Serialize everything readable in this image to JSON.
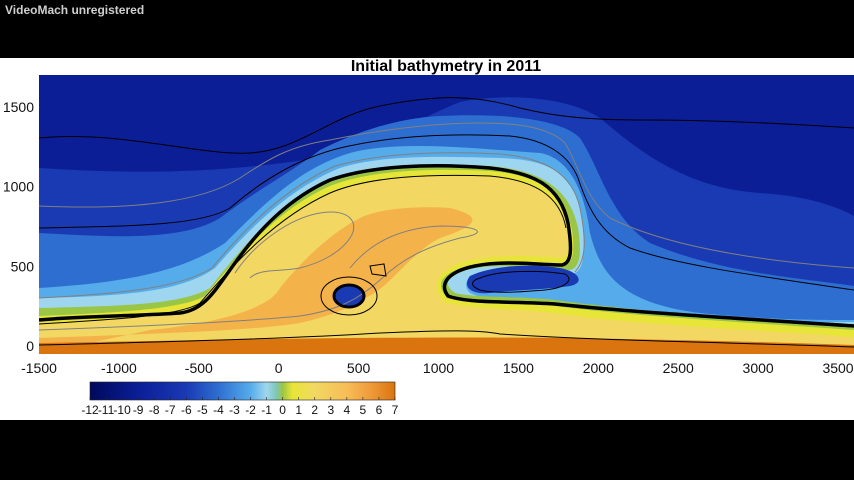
{
  "player": {
    "watermark": "VideoMach unregistered"
  },
  "chart_data": {
    "type": "heatmap",
    "title": "Initial bathymetry in 2011",
    "xlabel": "",
    "ylabel": "",
    "xlim": [
      -1500,
      3600
    ],
    "ylim": [
      -50,
      1700
    ],
    "x_ticks": [
      -1500,
      -1000,
      -500,
      0,
      500,
      1000,
      1500,
      2000,
      2500,
      3000,
      3500
    ],
    "x_tick_labels": [
      "-1500",
      "-1000",
      "-500",
      "0",
      "500",
      "1000",
      "1500",
      "2000",
      "2500",
      "3000",
      "3500"
    ],
    "y_ticks": [
      0,
      500,
      1000,
      1500
    ],
    "y_tick_labels": [
      "0",
      "500",
      "1000",
      "1500"
    ],
    "colorbar": {
      "min": -12,
      "max": 7,
      "ticks": [
        -12,
        -11,
        -10,
        -9,
        -8,
        -7,
        -6,
        -5,
        -4,
        -3,
        -2,
        -1,
        0,
        1,
        2,
        3,
        4,
        5,
        6,
        7
      ],
      "tick_labels": [
        "-12",
        "-11",
        "-10",
        "-9",
        "-8",
        "-7",
        "-6",
        "-5",
        "-4",
        "-3",
        "-2",
        "-1",
        "0",
        "1",
        "2",
        "3",
        "4",
        "5",
        "6",
        "7"
      ],
      "stops": [
        {
          "value": -12,
          "color": "#00095c"
        },
        {
          "value": -9,
          "color": "#0b1e96"
        },
        {
          "value": -6,
          "color": "#1a3ab4"
        },
        {
          "value": -4,
          "color": "#2e6ed0"
        },
        {
          "value": -2,
          "color": "#56acea"
        },
        {
          "value": -1,
          "color": "#9fd6ef"
        },
        {
          "value": -0.4,
          "color": "#7fc7b8"
        },
        {
          "value": 0,
          "color": "#9bc544"
        },
        {
          "value": 0.6,
          "color": "#e7e537"
        },
        {
          "value": 2,
          "color": "#f2d862"
        },
        {
          "value": 4,
          "color": "#f7bd57"
        },
        {
          "value": 5.5,
          "color": "#ef9a3a"
        },
        {
          "value": 7,
          "color": "#d9740f"
        }
      ]
    },
    "colors": {
      "deep": "#0b1e96",
      "mid_deep": "#1a3ab4",
      "channel": "#2e6ed0",
      "shallow": "#56acea",
      "near_zero": "#9fd6ef",
      "green": "#9bc544",
      "yellow": "#e7e537",
      "tan": "#f2d862",
      "orange": "#f4b24a",
      "dark_orange": "#d9740f"
    },
    "contours": {
      "zero_line": "thick black",
      "other_lines": "thin black and grey"
    },
    "grid": false,
    "legend": "colorbar-bottom-left"
  }
}
